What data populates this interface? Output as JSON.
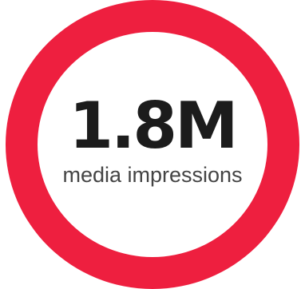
{
  "stat": {
    "value": "1.8M",
    "label": "media impressions"
  },
  "colors": {
    "ring": "#ee1f3f",
    "value_text": "#1c1c1c",
    "label_text": "#444444",
    "background": "#ffffff"
  }
}
